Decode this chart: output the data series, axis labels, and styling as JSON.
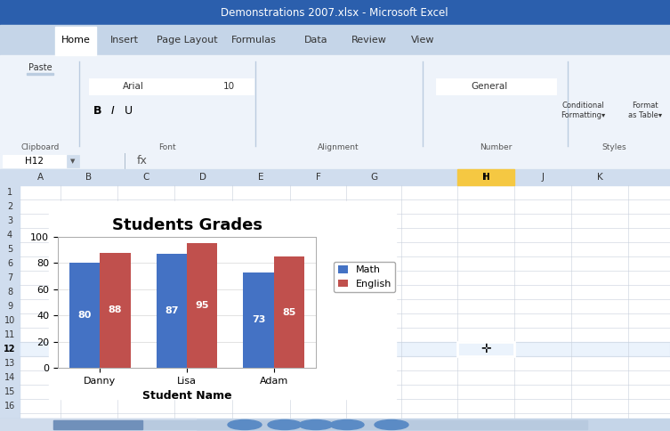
{
  "title": "Students Grades",
  "students": [
    "Danny",
    "Lisa",
    "Adam"
  ],
  "math_scores": [
    80,
    87,
    73
  ],
  "english_scores": [
    88,
    95,
    85
  ],
  "math_color": "#4472C4",
  "english_color": "#C0504D",
  "xlabel": "Student Name",
  "ylim": [
    0,
    100
  ],
  "yticks": [
    0,
    20,
    40,
    60,
    80,
    100
  ],
  "legend_math": "Math",
  "legend_english": "English",
  "title_fontsize": 13,
  "label_fontsize": 8,
  "bar_label_fontsize": 8,
  "axis_label_fontsize": 9,
  "bg_color": "#C5D5E8",
  "ribbon_color": "#D6E3F5",
  "titlebar_color": "#2B5FAD",
  "tab_bg": "#BDD0EC",
  "active_tab_color": "#FFFFFF",
  "header_color": "#D0DDEE",
  "grid_color": "#C8D0DC",
  "sheet_white": "#FFFFFF",
  "col_H_highlight": "#F5C842",
  "row12_color": "#F0F0F0",
  "cell_cursor_color": "#000000"
}
